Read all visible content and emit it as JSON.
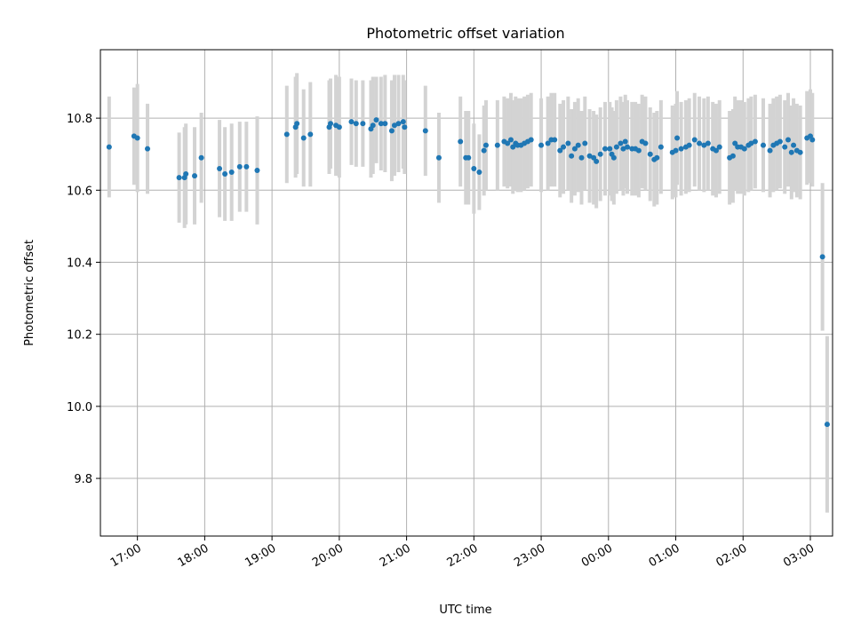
{
  "chart_data": {
    "type": "scatter",
    "title": "Photometric offset variation",
    "xlabel": "UTC time",
    "ylabel": "Photometric offset",
    "x_ticks": [
      "17:00",
      "18:00",
      "19:00",
      "20:00",
      "21:00",
      "22:00",
      "23:00",
      "00:00",
      "01:00",
      "02:00",
      "03:00"
    ],
    "y_ticks": [
      "9.8",
      "10.0",
      "10.2",
      "10.4",
      "10.6",
      "10.8"
    ],
    "xlim": [
      "16:27",
      "03:20 (+1d)"
    ],
    "ylim": [
      9.64,
      10.99
    ],
    "grid": true,
    "marker_color": "#1f77b4",
    "errorbar_color": "#d3d3d3",
    "x_unit": "UTC time as hours after 00:00 of the first day (24+ = next day)",
    "points": [
      [
        16.58,
        10.72,
        0.14
      ],
      [
        16.95,
        10.75,
        0.135
      ],
      [
        17.0,
        10.745,
        0.15
      ],
      [
        17.15,
        10.715,
        0.125
      ],
      [
        17.62,
        10.635,
        0.125
      ],
      [
        17.7,
        10.635,
        0.14
      ],
      [
        17.72,
        10.645,
        0.14
      ],
      [
        17.85,
        10.64,
        0.135
      ],
      [
        17.95,
        10.69,
        0.125
      ],
      [
        18.22,
        10.66,
        0.135
      ],
      [
        18.3,
        10.645,
        0.13
      ],
      [
        18.4,
        10.65,
        0.135
      ],
      [
        18.52,
        10.665,
        0.125
      ],
      [
        18.62,
        10.665,
        0.125
      ],
      [
        18.78,
        10.655,
        0.15
      ],
      [
        19.22,
        10.755,
        0.135
      ],
      [
        19.35,
        10.775,
        0.14
      ],
      [
        19.37,
        10.785,
        0.14
      ],
      [
        19.47,
        10.745,
        0.135
      ],
      [
        19.57,
        10.755,
        0.145
      ],
      [
        19.85,
        10.775,
        0.13
      ],
      [
        19.87,
        10.785,
        0.125
      ],
      [
        19.95,
        10.78,
        0.14
      ],
      [
        20.0,
        10.775,
        0.14
      ],
      [
        20.18,
        10.79,
        0.12
      ],
      [
        20.25,
        10.785,
        0.12
      ],
      [
        20.35,
        10.785,
        0.12
      ],
      [
        20.47,
        10.77,
        0.135
      ],
      [
        20.5,
        10.78,
        0.135
      ],
      [
        20.55,
        10.795,
        0.12
      ],
      [
        20.62,
        10.785,
        0.13
      ],
      [
        20.68,
        10.785,
        0.135
      ],
      [
        20.78,
        10.765,
        0.14
      ],
      [
        20.82,
        10.78,
        0.14
      ],
      [
        20.88,
        10.785,
        0.135
      ],
      [
        20.95,
        10.79,
        0.13
      ],
      [
        20.97,
        10.775,
        0.13
      ],
      [
        21.28,
        10.765,
        0.125
      ],
      [
        21.48,
        10.69,
        0.125
      ],
      [
        21.8,
        10.735,
        0.125
      ],
      [
        21.88,
        10.69,
        0.13
      ],
      [
        21.92,
        10.69,
        0.13
      ],
      [
        22.0,
        10.66,
        0.125
      ],
      [
        22.08,
        10.65,
        0.105
      ],
      [
        22.15,
        10.71,
        0.125
      ],
      [
        22.18,
        10.725,
        0.125
      ],
      [
        22.35,
        10.725,
        0.125
      ],
      [
        22.45,
        10.735,
        0.125
      ],
      [
        22.5,
        10.73,
        0.125
      ],
      [
        22.55,
        10.74,
        0.13
      ],
      [
        22.58,
        10.72,
        0.13
      ],
      [
        22.62,
        10.73,
        0.13
      ],
      [
        22.65,
        10.725,
        0.13
      ],
      [
        22.7,
        10.725,
        0.13
      ],
      [
        22.75,
        10.73,
        0.13
      ],
      [
        22.8,
        10.735,
        0.13
      ],
      [
        22.85,
        10.74,
        0.13
      ],
      [
        23.0,
        10.725,
        0.13
      ],
      [
        23.1,
        10.73,
        0.13
      ],
      [
        23.15,
        10.74,
        0.13
      ],
      [
        23.2,
        10.74,
        0.13
      ],
      [
        23.28,
        10.71,
        0.13
      ],
      [
        23.33,
        10.72,
        0.13
      ],
      [
        23.4,
        10.73,
        0.13
      ],
      [
        23.45,
        10.695,
        0.13
      ],
      [
        23.5,
        10.715,
        0.13
      ],
      [
        23.55,
        10.725,
        0.13
      ],
      [
        23.6,
        10.69,
        0.13
      ],
      [
        23.65,
        10.73,
        0.13
      ],
      [
        23.72,
        10.695,
        0.13
      ],
      [
        23.78,
        10.69,
        0.13
      ],
      [
        23.82,
        10.68,
        0.13
      ],
      [
        23.88,
        10.7,
        0.13
      ],
      [
        23.95,
        10.715,
        0.13
      ],
      [
        24.02,
        10.715,
        0.13
      ],
      [
        24.05,
        10.7,
        0.13
      ],
      [
        24.08,
        10.69,
        0.13
      ],
      [
        24.12,
        10.72,
        0.13
      ],
      [
        24.18,
        10.73,
        0.13
      ],
      [
        24.22,
        10.715,
        0.13
      ],
      [
        24.25,
        10.735,
        0.13
      ],
      [
        24.28,
        10.72,
        0.13
      ],
      [
        24.35,
        10.715,
        0.13
      ],
      [
        24.4,
        10.715,
        0.13
      ],
      [
        24.45,
        10.71,
        0.13
      ],
      [
        24.5,
        10.735,
        0.13
      ],
      [
        24.55,
        10.73,
        0.13
      ],
      [
        24.62,
        10.7,
        0.13
      ],
      [
        24.68,
        10.685,
        0.13
      ],
      [
        24.72,
        10.69,
        0.13
      ],
      [
        24.78,
        10.72,
        0.13
      ],
      [
        24.95,
        10.705,
        0.13
      ],
      [
        25.0,
        10.71,
        0.13
      ],
      [
        25.02,
        10.745,
        0.13
      ],
      [
        25.08,
        10.715,
        0.13
      ],
      [
        25.15,
        10.72,
        0.13
      ],
      [
        25.2,
        10.725,
        0.13
      ],
      [
        25.28,
        10.74,
        0.13
      ],
      [
        25.35,
        10.73,
        0.13
      ],
      [
        25.42,
        10.725,
        0.13
      ],
      [
        25.48,
        10.73,
        0.13
      ],
      [
        25.55,
        10.715,
        0.13
      ],
      [
        25.6,
        10.71,
        0.13
      ],
      [
        25.65,
        10.72,
        0.13
      ],
      [
        25.8,
        10.69,
        0.13
      ],
      [
        25.85,
        10.695,
        0.13
      ],
      [
        25.88,
        10.73,
        0.13
      ],
      [
        25.92,
        10.72,
        0.13
      ],
      [
        25.97,
        10.72,
        0.13
      ],
      [
        26.02,
        10.715,
        0.13
      ],
      [
        26.08,
        10.725,
        0.13
      ],
      [
        26.12,
        10.73,
        0.13
      ],
      [
        26.18,
        10.735,
        0.13
      ],
      [
        26.3,
        10.725,
        0.13
      ],
      [
        26.4,
        10.71,
        0.13
      ],
      [
        26.45,
        10.725,
        0.13
      ],
      [
        26.5,
        10.73,
        0.13
      ],
      [
        26.55,
        10.735,
        0.13
      ],
      [
        26.62,
        10.72,
        0.13
      ],
      [
        26.67,
        10.74,
        0.13
      ],
      [
        26.72,
        10.705,
        0.13
      ],
      [
        26.75,
        10.725,
        0.13
      ],
      [
        26.8,
        10.71,
        0.13
      ],
      [
        26.85,
        10.705,
        0.13
      ],
      [
        26.95,
        10.745,
        0.13
      ],
      [
        27.0,
        10.75,
        0.13
      ],
      [
        27.03,
        10.74,
        0.13
      ],
      [
        27.18,
        10.415,
        0.205
      ],
      [
        27.25,
        9.95,
        0.245
      ]
    ]
  }
}
